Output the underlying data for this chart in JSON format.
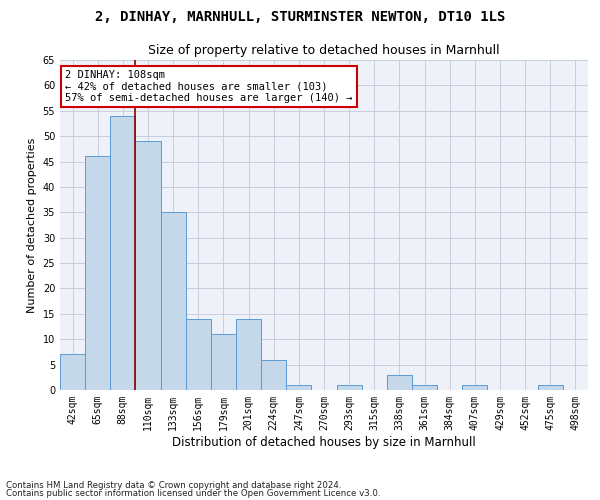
{
  "title1": "2, DINHAY, MARNHULL, STURMINSTER NEWTON, DT10 1LS",
  "title2": "Size of property relative to detached houses in Marnhull",
  "xlabel": "Distribution of detached houses by size in Marnhull",
  "ylabel": "Number of detached properties",
  "categories": [
    "42sqm",
    "65sqm",
    "88sqm",
    "110sqm",
    "133sqm",
    "156sqm",
    "179sqm",
    "201sqm",
    "224sqm",
    "247sqm",
    "270sqm",
    "293sqm",
    "315sqm",
    "338sqm",
    "361sqm",
    "384sqm",
    "407sqm",
    "429sqm",
    "452sqm",
    "475sqm",
    "498sqm"
  ],
  "values": [
    7,
    46,
    54,
    49,
    35,
    14,
    11,
    14,
    6,
    1,
    0,
    1,
    0,
    3,
    1,
    0,
    1,
    0,
    0,
    1,
    0
  ],
  "bar_color": "#c5d8ea",
  "bar_edge_color": "#5b9bd5",
  "bar_width": 1.0,
  "ylim": [
    0,
    65
  ],
  "yticks": [
    0,
    5,
    10,
    15,
    20,
    25,
    30,
    35,
    40,
    45,
    50,
    55,
    60,
    65
  ],
  "vline_x": 2.5,
  "vline_color": "#8b0000",
  "marker_label": "2 DINHAY: 108sqm",
  "annotation_line1": "← 42% of detached houses are smaller (103)",
  "annotation_line2": "57% of semi-detached houses are larger (140) →",
  "annotation_box_edge": "#cc0000",
  "grid_color": "#c0c8d8",
  "background_color": "#eef2f8",
  "footnote1": "Contains HM Land Registry data © Crown copyright and database right 2024.",
  "footnote2": "Contains public sector information licensed under the Open Government Licence v3.0.",
  "title1_fontsize": 10,
  "title2_fontsize": 9,
  "xlabel_fontsize": 8.5,
  "ylabel_fontsize": 8,
  "tick_fontsize": 7,
  "annot_fontsize": 7.5
}
